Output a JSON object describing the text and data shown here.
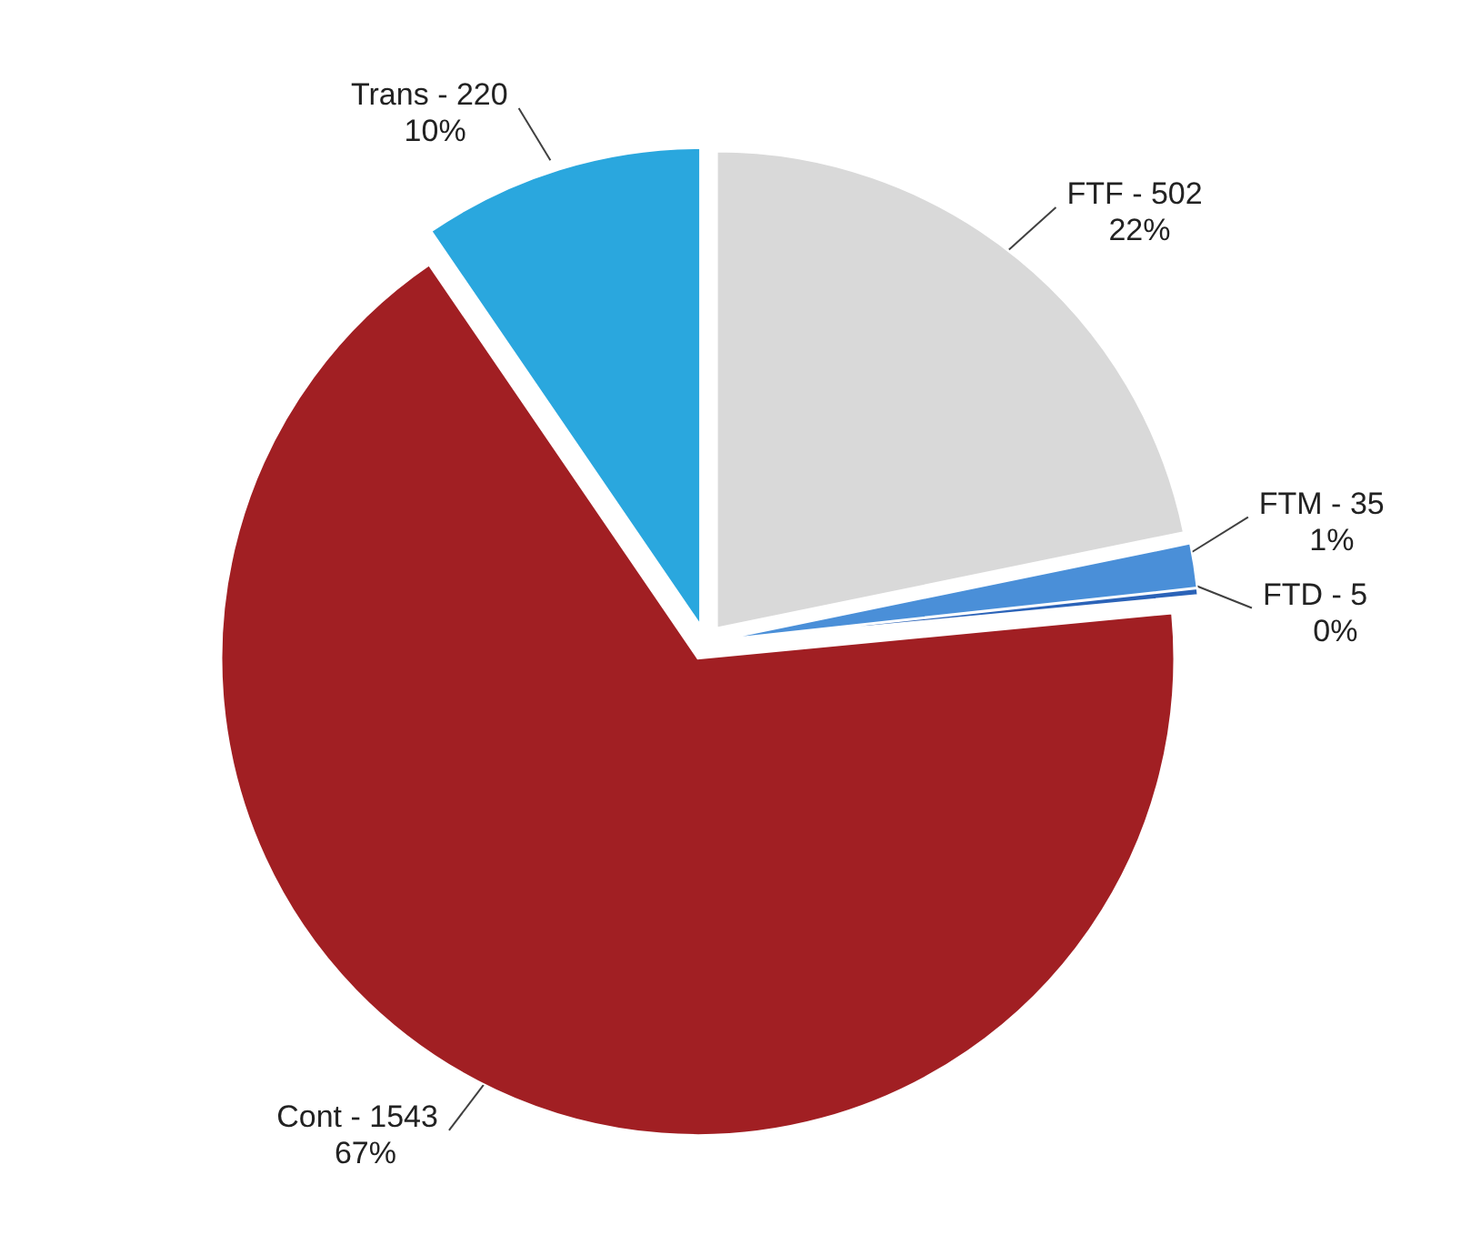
{
  "chart_data": {
    "type": "pie",
    "categories": [
      "FTF - 502",
      "FTM - 35",
      "FTD - 5",
      "Cont - 1543",
      "Trans - 220"
    ],
    "values": [
      21.78,
      1.49,
      0.22,
      66.97,
      9.54
    ],
    "colors": [
      "#d9d9d9",
      "#4a8fd8",
      "#2b63b8",
      "#a11f23",
      "#2aa7de"
    ],
    "value_labels": [
      "22%",
      "1%",
      "0%",
      "67%",
      "10%"
    ],
    "data_labels": true
  }
}
